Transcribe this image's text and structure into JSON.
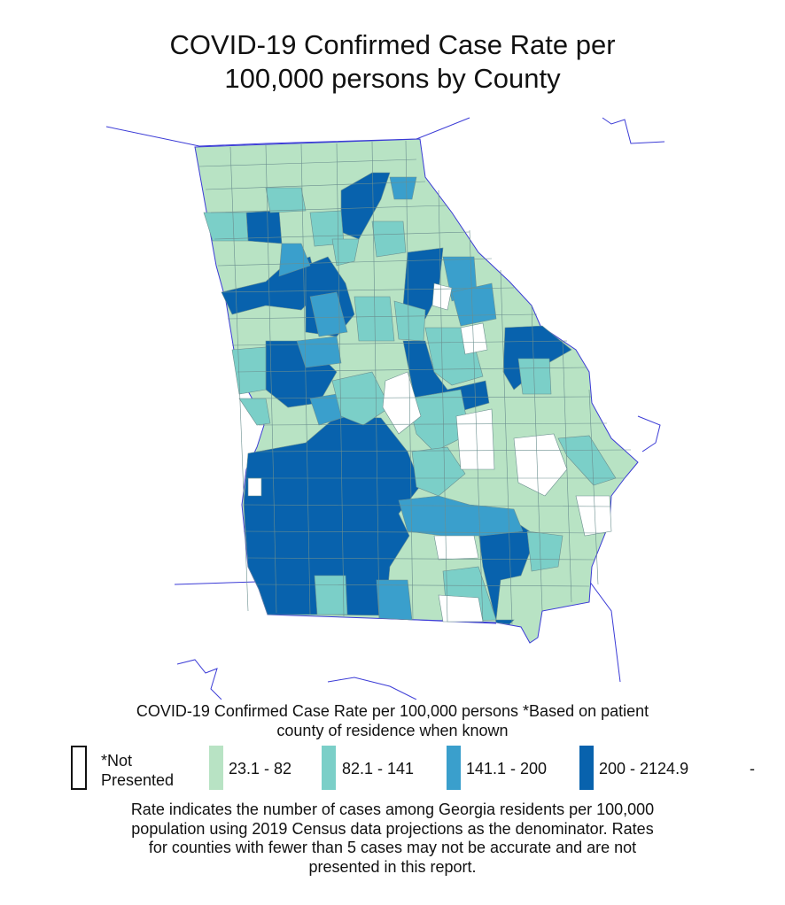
{
  "title_line1": "COVID-19 Confirmed Case Rate per",
  "title_line2": "100,000 persons by County",
  "legend": {
    "title_line1": "COVID-19 Confirmed Case Rate per 100,000 persons *Based on patient",
    "title_line2": "county of residence when known",
    "not_presented_line1": "*Not",
    "not_presented_line2": "Presented",
    "classes": [
      {
        "label": "23.1 - 82",
        "color": "#b8e3c4"
      },
      {
        "label": "82.1 - 141",
        "color": "#7bcfc8"
      },
      {
        "label": "141.1 - 200",
        "color": "#3a9fcc"
      },
      {
        "label": "200 - 2124.9",
        "color": "#0862ad"
      }
    ],
    "trailing": "-"
  },
  "footnote": {
    "line1": "Rate indicates the number of cases among Georgia residents per 100,000",
    "line2": "population using 2019 Census data projections as the denominator. Rates",
    "line3": "for counties with fewer than 5 cases may not be accurate and are not",
    "line4": "presented in this report."
  },
  "colors": {
    "border": "#3b3bd6",
    "not_presented": "#ffffff"
  }
}
